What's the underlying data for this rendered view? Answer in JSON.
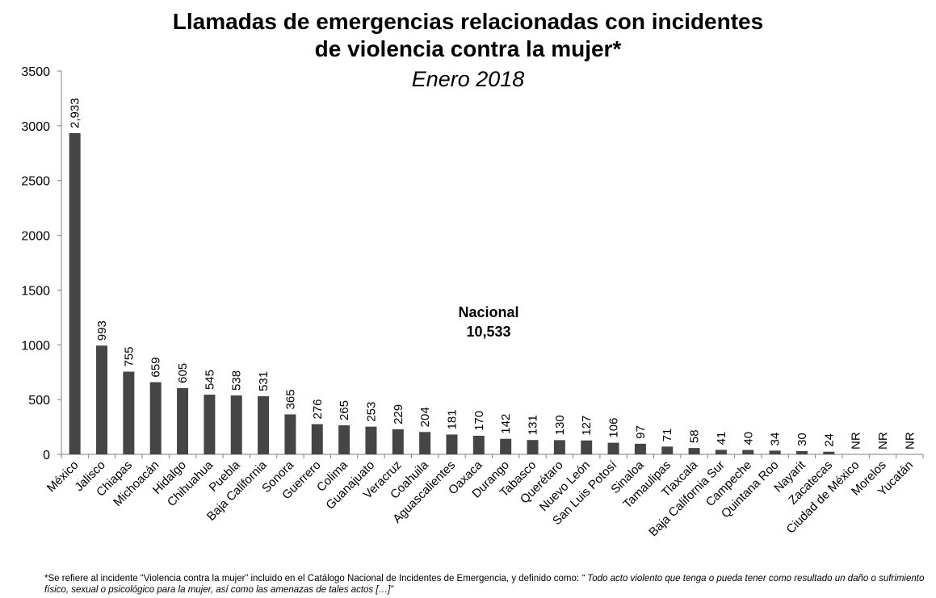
{
  "title_line1": "Llamadas de emergencias relacionadas con incidentes",
  "title_line2": "de violencia contra la mujer*",
  "subtitle": "Enero 2018",
  "annotation": {
    "line1": "Nacional",
    "line2": "10,533"
  },
  "footnote": {
    "plain": "*Se refiere al incidente “Violencia contra la mujer” incluido en el Catálogo Nacional de Incidentes de Emergencia, y definido como: ",
    "quote": "“ Todo acto violento que tenga o pueda tener como resultado un daño o sufrimiento físico, sexual o psicológico para la mujer, así como las amenazas de tales actos […]”"
  },
  "colors": {
    "bar": "#454545",
    "axis": "#7f7f7f",
    "text": "#000000"
  },
  "chart_data": {
    "type": "bar",
    "title": "Llamadas de emergencias relacionadas con incidentes de violencia contra la mujer*",
    "subtitle": "Enero 2018",
    "categories": [
      "México",
      "Jalisco",
      "Chiapas",
      "Michoacán",
      "Hidalgo",
      "Chihuahua",
      "Puebla",
      "Baja California",
      "Sonora",
      "Guerrero",
      "Colima",
      "Guanajuato",
      "Veracruz",
      "Coahuila",
      "Aguascalientes",
      "Oaxaca",
      "Durango",
      "Tabasco",
      "Querétaro",
      "Nuevo León",
      "San Luis Potosí",
      "Sinaloa",
      "Tamaulipas",
      "Tlaxcala",
      "Baja California Sur",
      "Campeche",
      "Quintana Roo",
      "Nayarit",
      "Zacatecas",
      "Ciudad de México",
      "Morelos",
      "Yucatán"
    ],
    "values": [
      2933,
      993,
      755,
      659,
      605,
      545,
      538,
      531,
      365,
      276,
      265,
      253,
      229,
      204,
      181,
      170,
      142,
      131,
      130,
      127,
      106,
      97,
      71,
      58,
      41,
      40,
      34,
      30,
      24,
      null,
      null,
      null
    ],
    "data_labels": [
      "2,933",
      "993",
      "755",
      "659",
      "605",
      "545",
      "538",
      "531",
      "365",
      "276",
      "265",
      "253",
      "229",
      "204",
      "181",
      "170",
      "142",
      "131",
      "130",
      "127",
      "106",
      "97",
      "71",
      "58",
      "41",
      "40",
      "34",
      "30",
      "24",
      "NR",
      "NR",
      "NR"
    ],
    "yticks": [
      0,
      500,
      1000,
      1500,
      2000,
      2500,
      3000,
      3500
    ],
    "ylim": [
      0,
      3500
    ],
    "xlabel": "",
    "ylabel": "",
    "grid": false,
    "legend": "none"
  }
}
